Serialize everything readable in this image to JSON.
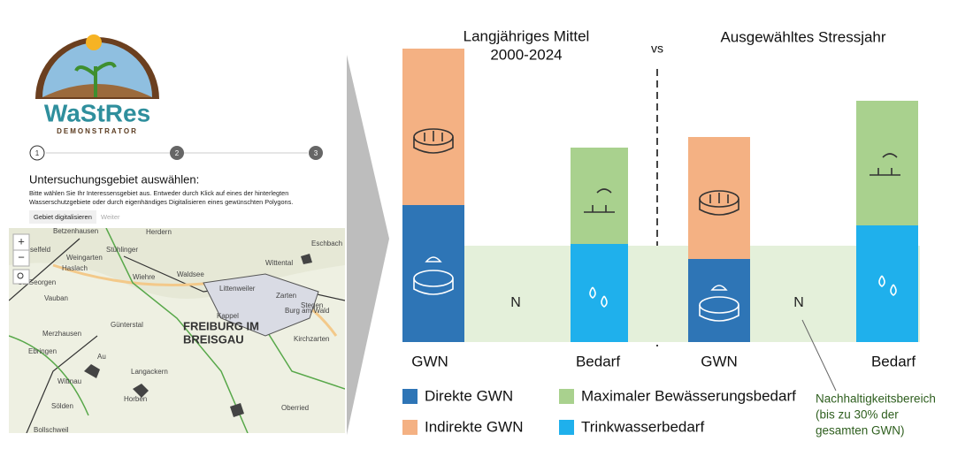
{
  "app": {
    "logo": {
      "title": "WaStRes",
      "subtitle": "DEMONSTRATOR"
    },
    "steps": [
      "1",
      "2",
      "3"
    ],
    "heading": "Untersuchungsgebiet auswählen:",
    "description": [
      "Bitte wählen Sie Ihr Interessensgebiet aus. Entweder durch Klick auf eines der hinterlegten",
      "Wasserschutzgebiete oder durch eigenhändiges Digitalisieren eines gewünschten Polygons."
    ],
    "tabs": [
      "Gebiet digitalisieren",
      "Weiter"
    ],
    "map": {
      "zoom_in": "+",
      "zoom_out": "−",
      "places": [
        "Betzenhausen",
        "Herdern",
        "Eschbach",
        "Rieselfeld",
        "Weingarten",
        "Stühlinger",
        "Haslach",
        "St. Georgen",
        "Vauban",
        "Wiehre",
        "Waldsee",
        "Littenweiler",
        "Wittental",
        "Zarten",
        "Stegen",
        "Kappel",
        "Burg am Wald",
        "Günterstal",
        "Merzhausen",
        "FREIBURG IM",
        "BREISGAU",
        "Kirchzarten",
        "Au",
        "Ebringen",
        "Wittnau",
        "Langackern",
        "Horben",
        "Sölden",
        "Oberried",
        "Bollschweil"
      ]
    }
  },
  "diagram": {
    "left_title": [
      "Langjähriges Mittel",
      "2000-2024"
    ],
    "vs": "vs",
    "right_title": "Ausgewähltes Stressjahr",
    "n_labels": [
      "N",
      "N"
    ],
    "bar_labels": [
      "GWN",
      "Bedarf",
      "GWN",
      "Bedarf"
    ],
    "legend": [
      "Direkte GWN",
      "Indirekte GWN",
      "Maximaler Bewässerungsbedarf",
      "Trinkwasserbedarf"
    ],
    "annotation": [
      "Nachhaltigkeitsbereich",
      "(bis zu 30% der",
      "gesamten GWN)"
    ]
  }
}
